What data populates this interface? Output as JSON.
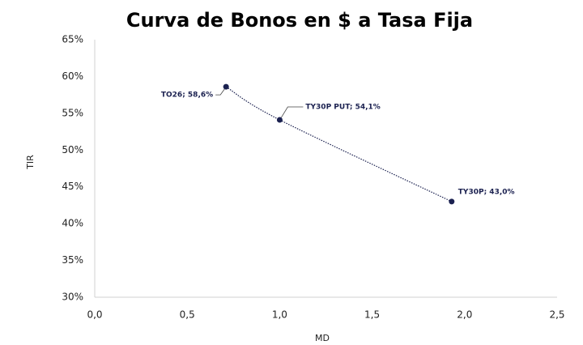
{
  "chart_data": {
    "type": "scatter",
    "title": "Curva de Bonos en $ a Tasa Fija",
    "xlabel": "MD",
    "ylabel": "TIR",
    "series": [
      {
        "color": "#1b2150",
        "x": [
          0.71,
          1.0,
          1.93
        ],
        "values": [
          58.6,
          54.1,
          43.0
        ],
        "value_labels": [
          "TO26; 58,6%",
          "TY30P PUT; 54,1%",
          "TY30P; 43,0%"
        ]
      }
    ],
    "xlim": [
      0,
      2.5
    ],
    "xticks": [
      {
        "value": 0,
        "label": "0,0"
      },
      {
        "value": 0.5,
        "label": "0,5"
      },
      {
        "value": 1,
        "label": "1,0"
      },
      {
        "value": 1.5,
        "label": "1,5"
      },
      {
        "value": 2,
        "label": "2,0"
      },
      {
        "value": 2.5,
        "label": "2,5"
      }
    ],
    "ylim": [
      30,
      65
    ],
    "yticks": [
      {
        "value": 30,
        "label": "30%"
      },
      {
        "value": 35,
        "label": "35%"
      },
      {
        "value": 40,
        "label": "40%"
      },
      {
        "value": 45,
        "label": "45%"
      },
      {
        "value": 50,
        "label": "50%"
      },
      {
        "value": 55,
        "label": "55%"
      },
      {
        "value": 60,
        "label": "60%"
      },
      {
        "value": 65,
        "label": "65%"
      }
    ],
    "grid": false
  }
}
